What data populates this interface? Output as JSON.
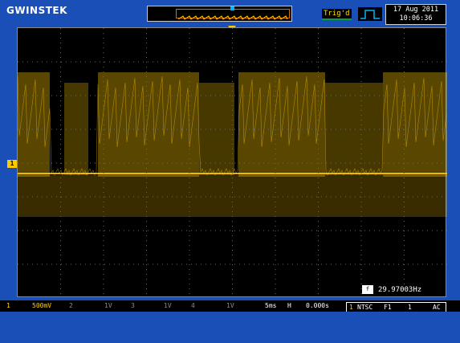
{
  "header": {
    "brand": "GWINSTEK",
    "trigger_status": "Trig'd",
    "date": "17 Aug 2011",
    "time": "10:06:36"
  },
  "markers": {
    "ch1_marker": "1",
    "trigger_marker_icon": "trigger-position-arrow-icon"
  },
  "readouts": {
    "frequency": "29.97003Hz",
    "frequency_icon": "f"
  },
  "status": {
    "ch1_label": "1",
    "ch1_scale": "500mV",
    "ch2_label": "2",
    "ch2_scale": "1V",
    "ch3_label": "3",
    "ch3_scale": "1V",
    "ch4_label": "4",
    "ch4_scale": "1V",
    "timebase": "5ms",
    "h_label": "H",
    "h_pos": "0.000s",
    "trig_ch": "1",
    "trig_mode": "NTSC",
    "trig_field": "F1",
    "trig_line": "1",
    "trig_coupling": "AC"
  },
  "colors": {
    "background": "#1a4fb8",
    "ch1": "#ffc800",
    "grid": "#6a6a6a"
  }
}
